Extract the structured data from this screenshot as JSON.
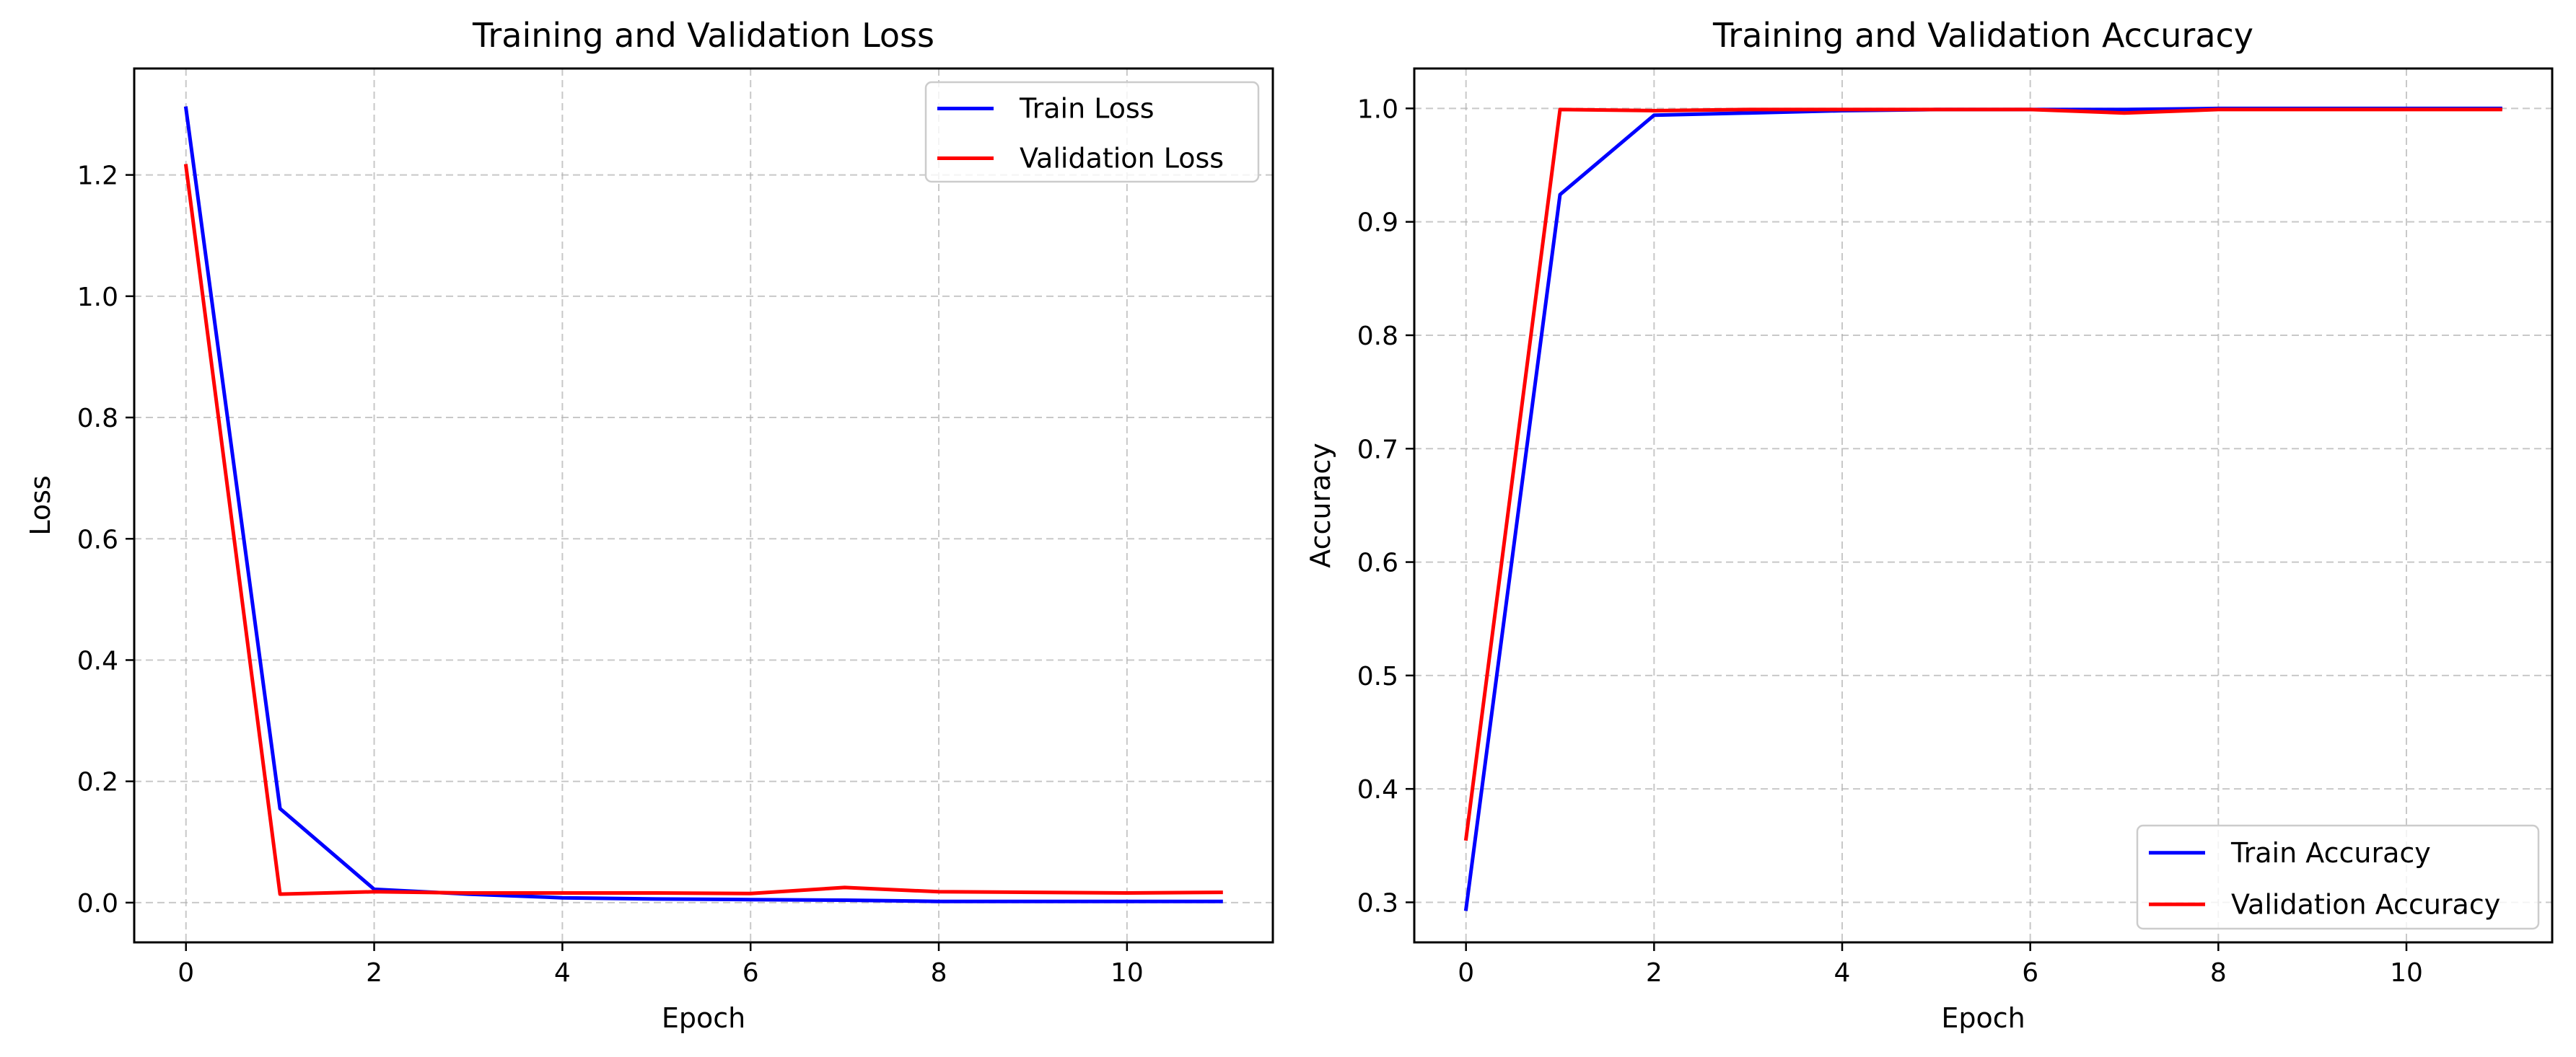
{
  "chart_data": [
    {
      "type": "line",
      "title": "Training and Validation Loss",
      "xlabel": "Epoch",
      "ylabel": "Loss",
      "xlim": [
        -0.55,
        11.55
      ],
      "ylim": [
        -0.0655,
        1.3755
      ],
      "xticks": [
        0,
        2,
        4,
        6,
        8,
        10
      ],
      "yticks": [
        0.0,
        0.2,
        0.4,
        0.6,
        0.8,
        1.0,
        1.2
      ],
      "ytick_labels": [
        "0.0",
        "0.2",
        "0.4",
        "0.6",
        "0.8",
        "1.0",
        "1.2"
      ],
      "grid": true,
      "legend_position": "top-right",
      "x": [
        0,
        1,
        2,
        3,
        4,
        5,
        6,
        7,
        8,
        9,
        10,
        11
      ],
      "series": [
        {
          "name": "Train Loss",
          "color": "#0000ff",
          "values": [
            1.31,
            0.155,
            0.022,
            0.014,
            0.008,
            0.006,
            0.005,
            0.004,
            0.002,
            0.002,
            0.002,
            0.002
          ]
        },
        {
          "name": "Validation Loss",
          "color": "#ff0000",
          "values": [
            1.215,
            0.014,
            0.018,
            0.016,
            0.016,
            0.016,
            0.015,
            0.025,
            0.018,
            0.017,
            0.016,
            0.017
          ]
        }
      ]
    },
    {
      "type": "line",
      "title": "Training and Validation Accuracy",
      "xlabel": "Epoch",
      "ylabel": "Accuracy",
      "xlim": [
        -0.55,
        11.55
      ],
      "ylim": [
        0.2647,
        1.0352
      ],
      "xticks": [
        0,
        2,
        4,
        6,
        8,
        10
      ],
      "yticks": [
        0.3,
        0.4,
        0.5,
        0.6,
        0.7,
        0.8,
        0.9,
        1.0
      ],
      "ytick_labels": [
        "0.3",
        "0.4",
        "0.5",
        "0.6",
        "0.7",
        "0.8",
        "0.9",
        "1.0"
      ],
      "grid": true,
      "legend_position": "bottom-right",
      "x": [
        0,
        1,
        2,
        3,
        4,
        5,
        6,
        7,
        8,
        9,
        10,
        11
      ],
      "series": [
        {
          "name": "Train Accuracy",
          "color": "#0000ff",
          "values": [
            0.294,
            0.924,
            0.994,
            0.996,
            0.998,
            0.999,
            0.999,
            0.999,
            1.0,
            1.0,
            1.0,
            1.0
          ]
        },
        {
          "name": "Validation Accuracy",
          "color": "#ff0000",
          "values": [
            0.356,
            0.999,
            0.998,
            0.999,
            0.999,
            0.999,
            0.999,
            0.996,
            0.999,
            0.999,
            0.999,
            0.999
          ]
        }
      ]
    }
  ]
}
